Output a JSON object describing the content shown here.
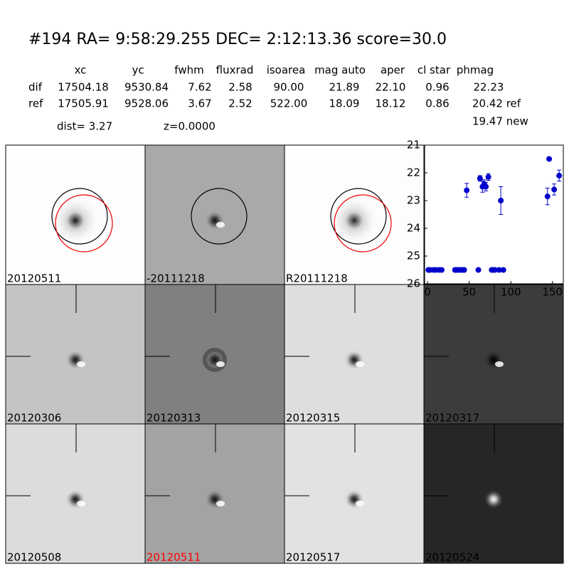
{
  "header": {
    "title": "#194   RA= 9:58:29.255 DEC= 2:12:13.36       score=30.0"
  },
  "table": {
    "columns": [
      "xc",
      "yc",
      "fwhm",
      "fluxrad",
      "isoarea",
      "mag auto",
      "aper",
      "cl star",
      "phmag"
    ],
    "rows": [
      [
        "dif",
        "17504.18",
        "9530.84",
        "7.62",
        "2.58",
        "90.00",
        "21.89",
        "22.10",
        "0.96",
        "22.23"
      ],
      [
        "ref",
        "17505.91",
        "9528.06",
        "3.67",
        "2.52",
        "522.00",
        "18.09",
        "18.12",
        "0.86",
        "20.42 ref"
      ]
    ],
    "extra": "19.47 new",
    "dist": "dist=  3.27",
    "z": "z=0.0000"
  },
  "panels": [
    {
      "label": "20120511",
      "label_color": "#000000"
    },
    {
      "label": "-20111218",
      "label_color": "#000000"
    },
    {
      "label": "R20111218",
      "label_color": "#000000"
    },
    {
      "label": "20120306",
      "label_color": "#000000"
    },
    {
      "label": "20120313",
      "label_color": "#000000"
    },
    {
      "label": "20120315",
      "label_color": "#000000"
    },
    {
      "label": "20120317",
      "label_color": "#000000"
    },
    {
      "label": "20120508",
      "label_color": "#000000"
    },
    {
      "label": "20120511",
      "label_color": "#ff0000"
    },
    {
      "label": "20120517",
      "label_color": "#000000"
    },
    {
      "label": "20120524",
      "label_color": "#000000"
    }
  ],
  "chart_data": {
    "type": "scatter",
    "color": "#0000cc",
    "x": [
      1,
      3,
      7,
      10,
      14,
      17,
      33,
      35,
      37,
      40,
      42,
      44,
      47,
      61,
      63,
      66,
      68,
      70,
      73,
      77,
      79,
      81,
      86,
      88,
      91,
      144,
      146,
      152,
      158
    ],
    "values": [
      25.5,
      25.5,
      25.5,
      25.5,
      25.5,
      25.5,
      25.5,
      25.5,
      25.5,
      25.5,
      25.5,
      25.5,
      22.63,
      25.5,
      22.2,
      22.5,
      22.4,
      22.5,
      22.15,
      25.5,
      25.5,
      25.5,
      25.5,
      23.0,
      25.5,
      22.85,
      21.5,
      22.6,
      22.1
    ],
    "errors": [
      null,
      null,
      null,
      null,
      null,
      null,
      null,
      null,
      null,
      null,
      null,
      null,
      0.25,
      null,
      0.1,
      0.2,
      0.15,
      0.15,
      0.12,
      null,
      null,
      null,
      null,
      0.5,
      null,
      0.3,
      0.05,
      0.2,
      0.2
    ],
    "xlim": [
      -3.5,
      163
    ],
    "ylim": [
      26,
      21
    ],
    "xticks": [
      0,
      50,
      100,
      150
    ],
    "yticks": [
      21,
      22,
      23,
      24,
      25,
      26
    ]
  }
}
